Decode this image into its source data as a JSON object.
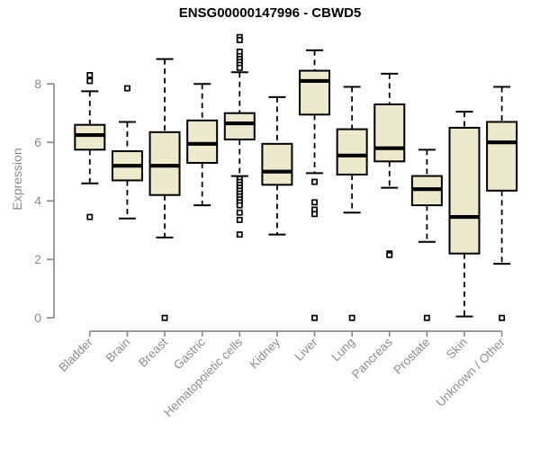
{
  "title": "ENSG00000147996 - CBWD5",
  "chart_data": {
    "type": "boxplot",
    "title": "ENSG00000147996 - CBWD5",
    "xlabel": "",
    "ylabel": "Expression",
    "ylim": [
      0,
      9.7
    ],
    "yticks": [
      0,
      2,
      4,
      6,
      8
    ],
    "grid": false,
    "legend": "none",
    "colors": {
      "box_fill": "#EEE8CD",
      "box_stroke": "#000000",
      "median": "#000000",
      "whisker": "#000000",
      "outlier_stroke": "#000000",
      "outlier_fill": "#ffffff",
      "axis": "#8C8C8C",
      "tick_label": "#8C8C8C",
      "title": "#000000",
      "background": "#ffffff"
    },
    "categories": [
      "Bladder",
      "Brain",
      "Breast",
      "Gastric",
      "Hematopoietic cells",
      "Kidney",
      "Liver",
      "Lung",
      "Pancreas",
      "Prostate",
      "Skin",
      "Unknown / Other"
    ],
    "series": [
      {
        "name": "Bladder",
        "whisker_low": 4.6,
        "q1": 5.75,
        "median": 6.25,
        "q3": 6.6,
        "whisker_high": 7.75,
        "outliers": [
          8.3,
          8.1,
          3.45
        ]
      },
      {
        "name": "Brain",
        "whisker_low": 3.4,
        "q1": 4.7,
        "median": 5.2,
        "q3": 5.7,
        "whisker_high": 6.7,
        "outliers": [
          7.85
        ]
      },
      {
        "name": "Breast",
        "whisker_low": 2.75,
        "q1": 4.2,
        "median": 5.2,
        "q3": 6.35,
        "whisker_high": 8.85,
        "outliers": [
          0
        ]
      },
      {
        "name": "Gastric",
        "whisker_low": 3.85,
        "q1": 5.3,
        "median": 5.95,
        "q3": 6.75,
        "whisker_high": 8.0,
        "outliers": []
      },
      {
        "name": "Hematopoietic cells",
        "whisker_low": 4.85,
        "q1": 6.1,
        "median": 6.65,
        "q3": 7.0,
        "whisker_high": 8.4,
        "outliers": [
          9.6,
          9.5,
          9.1,
          8.95,
          8.85,
          8.75,
          8.65,
          8.55,
          4.75,
          4.65,
          4.55,
          4.45,
          4.35,
          4.25,
          4.15,
          4.05,
          3.95,
          3.85,
          3.6,
          3.35,
          2.85
        ]
      },
      {
        "name": "Kidney",
        "whisker_low": 2.85,
        "q1": 4.55,
        "median": 5.0,
        "q3": 5.95,
        "whisker_high": 7.55,
        "outliers": []
      },
      {
        "name": "Liver",
        "whisker_low": 4.95,
        "q1": 6.95,
        "median": 8.1,
        "q3": 8.45,
        "whisker_high": 9.15,
        "outliers": [
          4.65,
          3.95,
          3.7,
          3.55,
          0
        ]
      },
      {
        "name": "Lung",
        "whisker_low": 3.6,
        "q1": 4.9,
        "median": 5.55,
        "q3": 6.45,
        "whisker_high": 7.9,
        "outliers": [
          0
        ]
      },
      {
        "name": "Pancreas",
        "whisker_low": 4.45,
        "q1": 5.35,
        "median": 5.8,
        "q3": 7.3,
        "whisker_high": 8.35,
        "outliers": [
          2.2,
          2.15
        ]
      },
      {
        "name": "Prostate",
        "whisker_low": 2.6,
        "q1": 3.85,
        "median": 4.4,
        "q3": 4.85,
        "whisker_high": 5.75,
        "outliers": [
          0
        ]
      },
      {
        "name": "Skin",
        "whisker_low": 0.05,
        "q1": 2.2,
        "median": 3.45,
        "q3": 6.5,
        "whisker_high": 7.05,
        "outliers": []
      },
      {
        "name": "Unknown / Other",
        "whisker_low": 1.85,
        "q1": 4.35,
        "median": 6.0,
        "q3": 6.7,
        "whisker_high": 7.9,
        "outliers": [
          0
        ]
      }
    ]
  }
}
